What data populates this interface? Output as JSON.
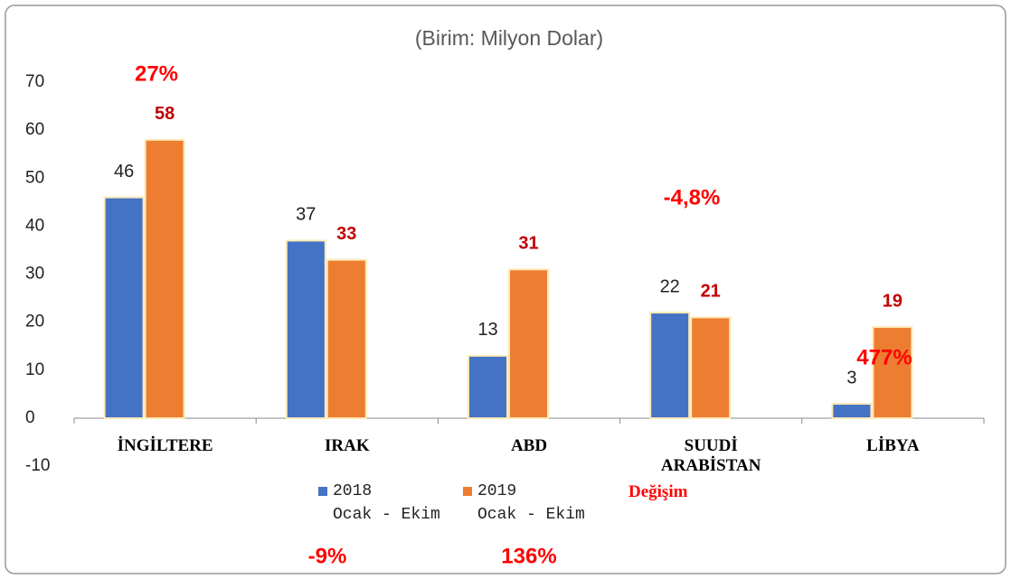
{
  "chart_data": {
    "type": "bar",
    "title": "(Birim: Milyon Dolar)",
    "categories": [
      "İNGİLTERE",
      "IRAK",
      "ABD",
      "SUUDİ\nARABİSTAN",
      "LİBYA"
    ],
    "series": [
      {
        "name": "2018\nOcak - Ekim",
        "color": "#4472c4",
        "label_color": "#222222",
        "values": [
          46,
          37,
          13,
          22,
          3
        ]
      },
      {
        "name": "2019\nOcak - Ekim",
        "color": "#ed7d31",
        "label_color": "#c00000",
        "values": [
          58,
          33,
          31,
          21,
          19
        ]
      }
    ],
    "change_label": "Değişim",
    "annotations": [
      "27%",
      "-9%",
      "136%",
      "-4,8%",
      "477%"
    ],
    "ylim": [
      -10,
      70
    ],
    "yticks": [
      -10,
      0,
      10,
      20,
      30,
      40,
      50,
      60,
      70
    ],
    "grid": false
  }
}
